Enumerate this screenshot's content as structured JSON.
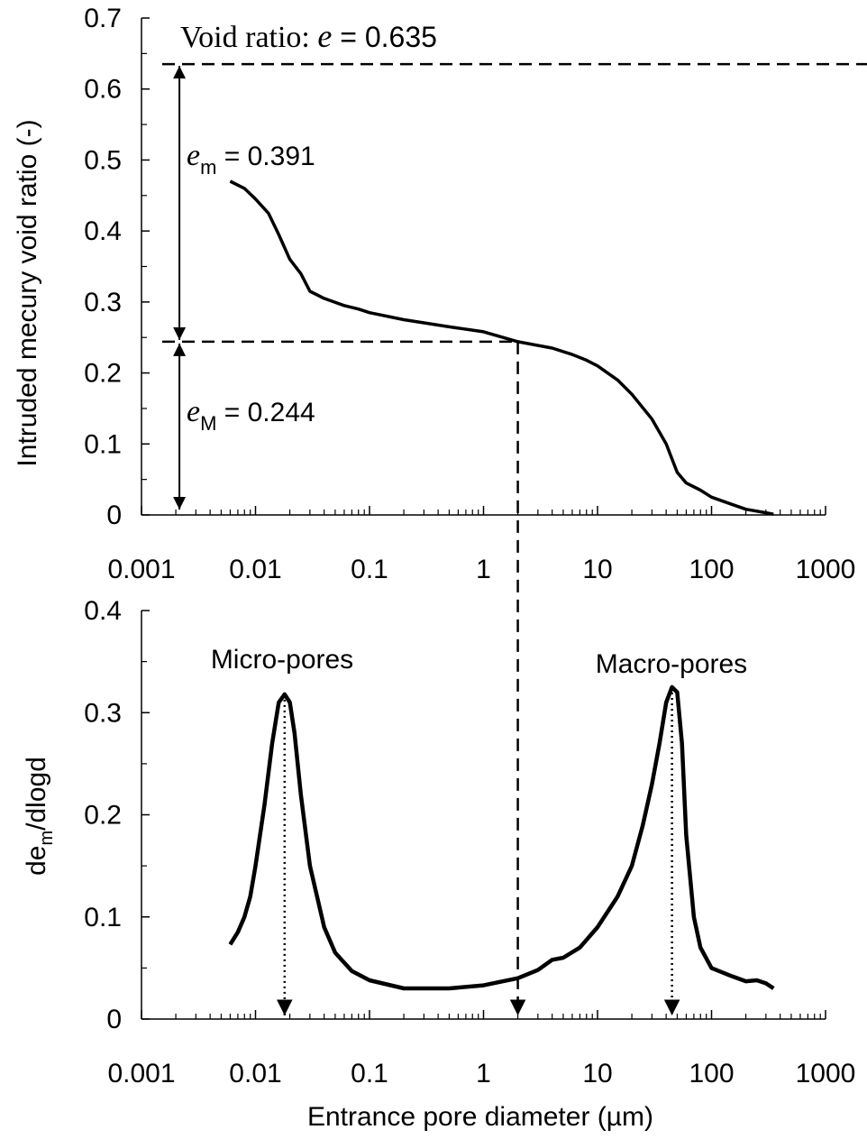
{
  "chart_data": [
    {
      "type": "line",
      "ylabel": "Intruded mecury void ratio (-)",
      "xlabel": "",
      "xscale": "log",
      "xlim": [
        0.001,
        1000
      ],
      "ylim": [
        0,
        0.7
      ],
      "x_ticks": [
        "0.001",
        "0.01",
        "0.1",
        "1",
        "10",
        "100",
        "1000"
      ],
      "y_ticks": [
        "0",
        "0.1",
        "0.2",
        "0.3",
        "0.4",
        "0.5",
        "0.6",
        "0.7"
      ],
      "grid": false,
      "series": [
        {
          "x": [
            0.006,
            0.008,
            0.01,
            0.013,
            0.016,
            0.02,
            0.025,
            0.03,
            0.04,
            0.06,
            0.08,
            0.1,
            0.2,
            0.5,
            1,
            2,
            4,
            6,
            8,
            10,
            15,
            20,
            30,
            40,
            50,
            60,
            80,
            100,
            150,
            200,
            300,
            350
          ],
          "y": [
            0.47,
            0.46,
            0.445,
            0.425,
            0.395,
            0.36,
            0.34,
            0.315,
            0.305,
            0.295,
            0.29,
            0.285,
            0.275,
            0.265,
            0.258,
            0.244,
            0.235,
            0.226,
            0.218,
            0.21,
            0.19,
            0.17,
            0.135,
            0.1,
            0.06,
            0.045,
            0.035,
            0.025,
            0.015,
            0.008,
            0.003,
            0.001
          ]
        }
      ],
      "annotations": {
        "void_ratio_prefix": "Void ratio: ",
        "void_ratio_symbol": "e",
        "void_ratio_value": " = 0.635",
        "e_m_symbol": "e",
        "e_m_sub": "m",
        "e_m_value": " = 0.391",
        "e_M_symbol": "e",
        "e_M_sub": "M",
        "e_M_value": " = 0.244"
      },
      "reference_lines": {
        "total_void_ratio": 0.635,
        "macro_void_ratio": 0.244,
        "split_diameter": 2,
        "arrow_x": 0.002
      }
    },
    {
      "type": "line",
      "ylabel_main": "de",
      "ylabel_sub": "m",
      "ylabel_rest": "/dlogd",
      "xlabel": "Entrance pore diameter (µm)",
      "xscale": "log",
      "xlim": [
        0.001,
        1000
      ],
      "ylim": [
        0,
        0.4
      ],
      "x_ticks": [
        "0.001",
        "0.01",
        "0.1",
        "1",
        "10",
        "100",
        "1000"
      ],
      "y_ticks": [
        "0",
        "0.1",
        "0.2",
        "0.3",
        "0.4"
      ],
      "grid": false,
      "series": [
        {
          "x": [
            0.006,
            0.007,
            0.008,
            0.009,
            0.01,
            0.012,
            0.014,
            0.016,
            0.018,
            0.02,
            0.022,
            0.025,
            0.03,
            0.04,
            0.05,
            0.07,
            0.1,
            0.2,
            0.5,
            1,
            2,
            3,
            4,
            5,
            7,
            10,
            15,
            20,
            25,
            30,
            35,
            40,
            45,
            50,
            55,
            60,
            70,
            80,
            100,
            150,
            200,
            250,
            300,
            350
          ],
          "y": [
            0.073,
            0.085,
            0.1,
            0.12,
            0.15,
            0.21,
            0.27,
            0.31,
            0.318,
            0.31,
            0.28,
            0.22,
            0.15,
            0.09,
            0.065,
            0.047,
            0.038,
            0.03,
            0.03,
            0.033,
            0.04,
            0.048,
            0.058,
            0.06,
            0.07,
            0.09,
            0.12,
            0.15,
            0.19,
            0.23,
            0.27,
            0.31,
            0.325,
            0.32,
            0.27,
            0.18,
            0.1,
            0.07,
            0.05,
            0.042,
            0.037,
            0.038,
            0.035,
            0.03
          ]
        }
      ],
      "annotations": {
        "micro": "Micro-pores",
        "macro": "Macro-pores"
      },
      "reference_lines": {
        "micro_peak_x": 0.018,
        "micro_peak_y": 0.318,
        "macro_peak_x": 45,
        "macro_peak_y": 0.325,
        "split_diameter": 2
      }
    }
  ]
}
